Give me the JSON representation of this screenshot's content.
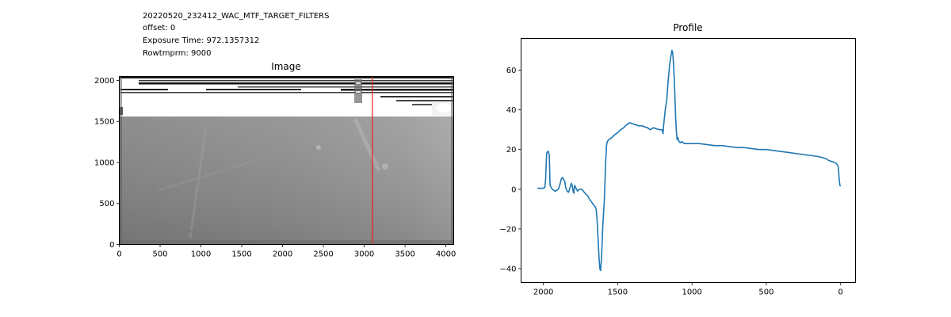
{
  "header": {
    "lines": [
      "20220520_232412_WAC_MTF_TARGET_FILTERS",
      "offset: 0",
      "Exposure Time: 972.1357312",
      "Rowtmprm: 9000"
    ]
  },
  "chart_data": [
    {
      "type": "heatmap",
      "title": "Image",
      "xlabel": "",
      "ylabel": "",
      "xlim": [
        0,
        4096
      ],
      "ylim": [
        0,
        2048
      ],
      "xticks": [
        0,
        500,
        1000,
        1500,
        2000,
        2500,
        3000,
        3500,
        4000
      ],
      "yticks": [
        0,
        500,
        1000,
        1500,
        2000
      ],
      "marker_line": {
        "x": 3100,
        "color": "#e8231f"
      },
      "colormap": "gray"
    },
    {
      "type": "line",
      "title": "Profile",
      "xlabel": "",
      "ylabel": "",
      "x_inverted": true,
      "xlim": [
        2150,
        -100
      ],
      "ylim": [
        -47,
        76
      ],
      "xticks": [
        2000,
        1500,
        1000,
        500,
        0
      ],
      "yticks": [
        -40,
        -20,
        0,
        20,
        40,
        60
      ],
      "color": "#1f77b4",
      "series": [
        {
          "x": [
            2040,
            2000,
            1990,
            1985,
            1978,
            1972,
            1966,
            1960,
            1955,
            1940,
            1920,
            1900,
            1890,
            1880,
            1872,
            1864,
            1856,
            1850,
            1840,
            1830,
            1820,
            1812,
            1806,
            1800,
            1795,
            1790,
            1780,
            1770,
            1760,
            1740,
            1720,
            1700,
            1690,
            1680,
            1670,
            1660,
            1650,
            1645,
            1640,
            1635,
            1630,
            1625,
            1620,
            1615,
            1610,
            1605,
            1600,
            1595,
            1590,
            1585,
            1580,
            1575,
            1570,
            1560,
            1550,
            1540,
            1520,
            1500,
            1480,
            1460,
            1440,
            1420,
            1400,
            1380,
            1360,
            1340,
            1320,
            1300,
            1280,
            1260,
            1240,
            1220,
            1200,
            1195,
            1190,
            1180,
            1170,
            1160,
            1150,
            1140,
            1135,
            1130,
            1125,
            1120,
            1115,
            1110,
            1105,
            1100,
            1095,
            1090,
            1085,
            1080,
            1075,
            1070,
            1060,
            1050,
            1000,
            950,
            900,
            850,
            800,
            750,
            700,
            650,
            600,
            550,
            500,
            450,
            400,
            350,
            300,
            250,
            200,
            150,
            100,
            80,
            60,
            40,
            30,
            25,
            20,
            15,
            10,
            5,
            0
          ],
          "y": [
            0.5,
            0.5,
            1,
            5,
            18,
            19,
            19,
            17,
            2,
            0,
            -1,
            0,
            2,
            5,
            6,
            5,
            4,
            1,
            -1,
            -1.5,
            1,
            3,
            2,
            -1,
            -2,
            2,
            0.5,
            -1,
            0,
            0,
            -2,
            -3.5,
            -5,
            -6,
            -7,
            -8,
            -9,
            -10,
            -14,
            -20,
            -28,
            -35,
            -40,
            -41,
            -36,
            -28,
            -18,
            -12,
            -6,
            5,
            15,
            22,
            24,
            25,
            25.5,
            26,
            27.5,
            28.5,
            30,
            31,
            32.5,
            33.5,
            33,
            32.5,
            32,
            32,
            31.5,
            31,
            30,
            31,
            30.5,
            30,
            30,
            28,
            33,
            40,
            45,
            55,
            63,
            68,
            70,
            69,
            64,
            57,
            47,
            36,
            29,
            25,
            26,
            24.5,
            24,
            23.5,
            23.5,
            24,
            23.5,
            23,
            23,
            23,
            22.5,
            22,
            22,
            21.5,
            21,
            21,
            20.5,
            20,
            20,
            19.5,
            19,
            18.5,
            18,
            17.5,
            17,
            16.5,
            15.5,
            14.5,
            14,
            13.5,
            13,
            12.5,
            12,
            11,
            5,
            2,
            1.5
          ]
        }
      ]
    }
  ]
}
